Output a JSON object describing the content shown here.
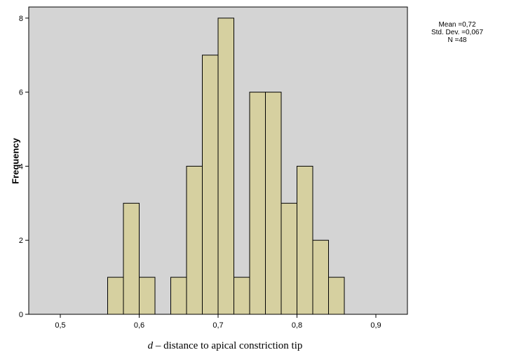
{
  "chart_data": {
    "type": "bar",
    "subtype": "histogram",
    "bin_width": 0.02,
    "bins": [
      {
        "start": 0.56,
        "end": 0.58,
        "count": 1
      },
      {
        "start": 0.58,
        "end": 0.6,
        "count": 3
      },
      {
        "start": 0.6,
        "end": 0.62,
        "count": 1
      },
      {
        "start": 0.64,
        "end": 0.66,
        "count": 1
      },
      {
        "start": 0.66,
        "end": 0.68,
        "count": 4
      },
      {
        "start": 0.68,
        "end": 0.7,
        "count": 7
      },
      {
        "start": 0.7,
        "end": 0.72,
        "count": 8
      },
      {
        "start": 0.72,
        "end": 0.74,
        "count": 1
      },
      {
        "start": 0.74,
        "end": 0.76,
        "count": 6
      },
      {
        "start": 0.76,
        "end": 0.78,
        "count": 6
      },
      {
        "start": 0.78,
        "end": 0.8,
        "count": 3
      },
      {
        "start": 0.8,
        "end": 0.82,
        "count": 4
      },
      {
        "start": 0.82,
        "end": 0.84,
        "count": 2
      },
      {
        "start": 0.84,
        "end": 0.86,
        "count": 1
      }
    ],
    "xlim": [
      0.46,
      0.94
    ],
    "ylim": [
      0,
      8.3
    ],
    "xticks": [
      0.5,
      0.6,
      0.7,
      0.8,
      0.9
    ],
    "xtick_labels": [
      "0,5",
      "0,6",
      "0,7",
      "0,8",
      "0,9"
    ],
    "yticks": [
      0,
      2,
      4,
      6,
      8
    ],
    "ytick_labels": [
      "0",
      "2",
      "4",
      "6",
      "8"
    ],
    "xlabel_prefix": "d",
    "xlabel_text": " – distance to apical constriction tip",
    "ylabel": "Frequency",
    "stats": {
      "mean": "Mean =0,72",
      "std": "Std. Dev. =0,067",
      "n": "N =48"
    },
    "colors": {
      "plot_bg": "#d4d4d4",
      "bar_fill": "#d6d0a0",
      "bar_stroke": "#000000"
    },
    "grid": false,
    "legend": "none"
  }
}
